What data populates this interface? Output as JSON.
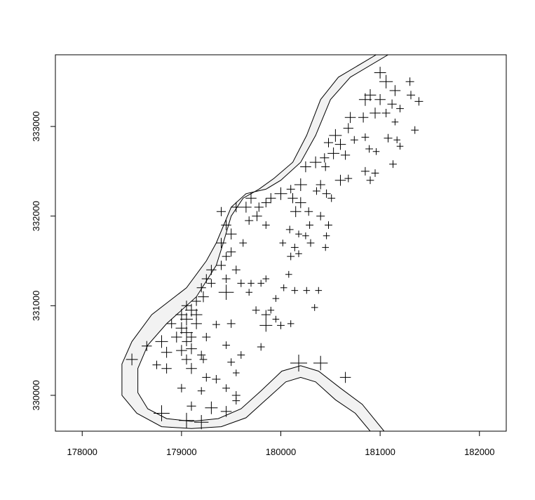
{
  "chart_data": {
    "type": "scatter",
    "title": "",
    "xlabel": "",
    "ylabel": "",
    "xlim": [
      177730,
      182270
    ],
    "ylim": [
      329600,
      333800
    ],
    "x_ticks": [
      178000,
      179000,
      180000,
      181000,
      182000
    ],
    "y_ticks": [
      330000,
      331000,
      332000,
      333000
    ],
    "x_tick_labels": [
      "178000",
      "179000",
      "180000",
      "181000",
      "182000"
    ],
    "y_tick_labels": [
      "330000",
      "331000",
      "332000",
      "333000"
    ],
    "marker": "plus",
    "marker_color": "#000000",
    "river_fill": "#f2f2f2",
    "river_stroke": "#000000",
    "legend": "none",
    "grid": false,
    "river_left_outer": [
      [
        181080,
        333800
      ],
      [
        180700,
        333550
      ],
      [
        180500,
        333300
      ],
      [
        180350,
        332900
      ],
      [
        180200,
        332600
      ],
      [
        180000,
        332400
      ],
      [
        179850,
        332300
      ],
      [
        179650,
        332250
      ],
      [
        179500,
        332100
      ],
      [
        179350,
        331700
      ],
      [
        179250,
        331500
      ],
      [
        179050,
        331200
      ],
      [
        178700,
        330900
      ],
      [
        178500,
        330600
      ],
      [
        178400,
        330350
      ],
      [
        178400,
        330000
      ],
      [
        178550,
        329800
      ],
      [
        178800,
        329650
      ],
      [
        179100,
        329630
      ],
      [
        179400,
        329650
      ],
      [
        179650,
        329750
      ],
      [
        179850,
        329950
      ],
      [
        180050,
        330150
      ],
      [
        180200,
        330200
      ],
      [
        180350,
        330150
      ],
      [
        180550,
        329950
      ],
      [
        180750,
        329800
      ],
      [
        180900,
        329600
      ]
    ],
    "river_left_inner": [
      [
        180960,
        333800
      ],
      [
        180580,
        333550
      ],
      [
        180400,
        333300
      ],
      [
        180260,
        332900
      ],
      [
        180120,
        332600
      ],
      [
        179930,
        332420
      ],
      [
        179780,
        332300
      ],
      [
        179620,
        332200
      ],
      [
        179500,
        332000
      ],
      [
        179420,
        331700
      ],
      [
        179350,
        331450
      ],
      [
        179150,
        331100
      ],
      [
        178850,
        330800
      ],
      [
        178660,
        330560
      ],
      [
        178560,
        330300
      ],
      [
        178560,
        330030
      ],
      [
        178660,
        329850
      ],
      [
        178850,
        329740
      ],
      [
        179100,
        329710
      ],
      [
        179370,
        329740
      ],
      [
        179600,
        329850
      ],
      [
        179800,
        330050
      ],
      [
        180010,
        330270
      ],
      [
        180200,
        330330
      ],
      [
        180380,
        330270
      ],
      [
        180600,
        330080
      ],
      [
        180820,
        329900
      ],
      [
        181040,
        329600
      ]
    ],
    "points": [
      {
        "x": 181000,
        "y": 333600,
        "s": 1.4
      },
      {
        "x": 181060,
        "y": 333500,
        "s": 1.6
      },
      {
        "x": 181150,
        "y": 333400,
        "s": 1.3
      },
      {
        "x": 181300,
        "y": 333500,
        "s": 1.0
      },
      {
        "x": 181310,
        "y": 333350,
        "s": 1.0
      },
      {
        "x": 181390,
        "y": 333280,
        "s": 1.0
      },
      {
        "x": 181000,
        "y": 333300,
        "s": 1.3
      },
      {
        "x": 180900,
        "y": 333350,
        "s": 1.4
      },
      {
        "x": 180850,
        "y": 333300,
        "s": 1.5
      },
      {
        "x": 181120,
        "y": 333250,
        "s": 1.1
      },
      {
        "x": 181200,
        "y": 333200,
        "s": 0.9
      },
      {
        "x": 180950,
        "y": 333150,
        "s": 1.3
      },
      {
        "x": 180830,
        "y": 333100,
        "s": 1.2
      },
      {
        "x": 180700,
        "y": 333100,
        "s": 1.3
      },
      {
        "x": 181060,
        "y": 333150,
        "s": 1.0
      },
      {
        "x": 181150,
        "y": 333050,
        "s": 0.8
      },
      {
        "x": 181350,
        "y": 332960,
        "s": 0.9
      },
      {
        "x": 180680,
        "y": 332980,
        "s": 1.2
      },
      {
        "x": 180550,
        "y": 332900,
        "s": 1.5
      },
      {
        "x": 180600,
        "y": 332800,
        "s": 1.3
      },
      {
        "x": 180480,
        "y": 332820,
        "s": 1.1
      },
      {
        "x": 180740,
        "y": 332850,
        "s": 0.9
      },
      {
        "x": 180850,
        "y": 332880,
        "s": 0.9
      },
      {
        "x": 181080,
        "y": 332870,
        "s": 1.0
      },
      {
        "x": 181170,
        "y": 332850,
        "s": 0.8
      },
      {
        "x": 181200,
        "y": 332780,
        "s": 0.8
      },
      {
        "x": 180890,
        "y": 332750,
        "s": 0.9
      },
      {
        "x": 180960,
        "y": 332720,
        "s": 0.8
      },
      {
        "x": 180530,
        "y": 332700,
        "s": 1.4
      },
      {
        "x": 180650,
        "y": 332680,
        "s": 1.1
      },
      {
        "x": 180440,
        "y": 332650,
        "s": 1.1
      },
      {
        "x": 180350,
        "y": 332600,
        "s": 1.4
      },
      {
        "x": 180250,
        "y": 332550,
        "s": 1.3
      },
      {
        "x": 180450,
        "y": 332550,
        "s": 1.0
      },
      {
        "x": 181130,
        "y": 332580,
        "s": 0.9
      },
      {
        "x": 180850,
        "y": 332500,
        "s": 1.0
      },
      {
        "x": 180950,
        "y": 332480,
        "s": 0.9
      },
      {
        "x": 180900,
        "y": 332400,
        "s": 0.9
      },
      {
        "x": 180600,
        "y": 332400,
        "s": 1.3
      },
      {
        "x": 180680,
        "y": 332420,
        "s": 0.9
      },
      {
        "x": 180400,
        "y": 332350,
        "s": 1.1
      },
      {
        "x": 180200,
        "y": 332350,
        "s": 1.5
      },
      {
        "x": 180360,
        "y": 332280,
        "s": 0.9
      },
      {
        "x": 180100,
        "y": 332300,
        "s": 1.0
      },
      {
        "x": 180000,
        "y": 332250,
        "s": 1.5
      },
      {
        "x": 179900,
        "y": 332200,
        "s": 1.2
      },
      {
        "x": 179700,
        "y": 332200,
        "s": 1.3
      },
      {
        "x": 180460,
        "y": 332250,
        "s": 1.0
      },
      {
        "x": 180510,
        "y": 332200,
        "s": 0.9
      },
      {
        "x": 180120,
        "y": 332200,
        "s": 1.2
      },
      {
        "x": 180200,
        "y": 332150,
        "s": 1.3
      },
      {
        "x": 179850,
        "y": 332150,
        "s": 1.1
      },
      {
        "x": 179780,
        "y": 332100,
        "s": 1.1
      },
      {
        "x": 179650,
        "y": 332100,
        "s": 1.3
      },
      {
        "x": 179550,
        "y": 332100,
        "s": 1.2
      },
      {
        "x": 179400,
        "y": 332050,
        "s": 1.1
      },
      {
        "x": 180150,
        "y": 332050,
        "s": 1.3
      },
      {
        "x": 180280,
        "y": 332050,
        "s": 1.0
      },
      {
        "x": 179760,
        "y": 332000,
        "s": 1.2
      },
      {
        "x": 179680,
        "y": 331950,
        "s": 1.0
      },
      {
        "x": 180400,
        "y": 332000,
        "s": 1.0
      },
      {
        "x": 180290,
        "y": 331900,
        "s": 0.9
      },
      {
        "x": 179850,
        "y": 331900,
        "s": 0.9
      },
      {
        "x": 179450,
        "y": 331900,
        "s": 1.2
      },
      {
        "x": 180480,
        "y": 331900,
        "s": 0.9
      },
      {
        "x": 180090,
        "y": 331850,
        "s": 0.9
      },
      {
        "x": 180180,
        "y": 331800,
        "s": 0.8
      },
      {
        "x": 180250,
        "y": 331780,
        "s": 0.8
      },
      {
        "x": 180460,
        "y": 331780,
        "s": 0.8
      },
      {
        "x": 179500,
        "y": 331800,
        "s": 1.3
      },
      {
        "x": 179400,
        "y": 331700,
        "s": 1.2
      },
      {
        "x": 179620,
        "y": 331700,
        "s": 0.9
      },
      {
        "x": 180020,
        "y": 331700,
        "s": 0.8
      },
      {
        "x": 180140,
        "y": 331650,
        "s": 0.9
      },
      {
        "x": 180300,
        "y": 331700,
        "s": 0.9
      },
      {
        "x": 180450,
        "y": 331650,
        "s": 0.8
      },
      {
        "x": 179500,
        "y": 331600,
        "s": 1.1
      },
      {
        "x": 179450,
        "y": 331550,
        "s": 1.0
      },
      {
        "x": 180100,
        "y": 331550,
        "s": 0.9
      },
      {
        "x": 180180,
        "y": 331580,
        "s": 0.8
      },
      {
        "x": 179400,
        "y": 331450,
        "s": 1.1
      },
      {
        "x": 179300,
        "y": 331400,
        "s": 1.2
      },
      {
        "x": 179550,
        "y": 331400,
        "s": 1.0
      },
      {
        "x": 179250,
        "y": 331300,
        "s": 1.1
      },
      {
        "x": 179450,
        "y": 331300,
        "s": 1.0
      },
      {
        "x": 179850,
        "y": 331300,
        "s": 0.8
      },
      {
        "x": 180080,
        "y": 331350,
        "s": 0.8
      },
      {
        "x": 179200,
        "y": 331200,
        "s": 1.1
      },
      {
        "x": 179300,
        "y": 331250,
        "s": 1.0
      },
      {
        "x": 179600,
        "y": 331250,
        "s": 0.9
      },
      {
        "x": 179700,
        "y": 331250,
        "s": 0.8
      },
      {
        "x": 179800,
        "y": 331250,
        "s": 0.8
      },
      {
        "x": 179220,
        "y": 331100,
        "s": 1.3
      },
      {
        "x": 179450,
        "y": 331150,
        "s": 1.8
      },
      {
        "x": 179680,
        "y": 331150,
        "s": 0.8
      },
      {
        "x": 180030,
        "y": 331200,
        "s": 0.8
      },
      {
        "x": 180140,
        "y": 331170,
        "s": 0.8
      },
      {
        "x": 180260,
        "y": 331170,
        "s": 0.8
      },
      {
        "x": 180380,
        "y": 331170,
        "s": 0.8
      },
      {
        "x": 179950,
        "y": 331080,
        "s": 0.8
      },
      {
        "x": 179050,
        "y": 331000,
        "s": 1.2
      },
      {
        "x": 179150,
        "y": 331050,
        "s": 1.1
      },
      {
        "x": 179000,
        "y": 330900,
        "s": 1.4
      },
      {
        "x": 179100,
        "y": 330950,
        "s": 1.5
      },
      {
        "x": 180340,
        "y": 330980,
        "s": 0.8
      },
      {
        "x": 179050,
        "y": 330850,
        "s": 1.5
      },
      {
        "x": 179150,
        "y": 330900,
        "s": 1.4
      },
      {
        "x": 179750,
        "y": 330950,
        "s": 0.9
      },
      {
        "x": 179850,
        "y": 330900,
        "s": 1.1
      },
      {
        "x": 179900,
        "y": 330950,
        "s": 0.8
      },
      {
        "x": 178900,
        "y": 330800,
        "s": 1.1
      },
      {
        "x": 179000,
        "y": 330750,
        "s": 1.4
      },
      {
        "x": 179150,
        "y": 330800,
        "s": 1.3
      },
      {
        "x": 179050,
        "y": 330700,
        "s": 1.5
      },
      {
        "x": 179500,
        "y": 330800,
        "s": 1.0
      },
      {
        "x": 179850,
        "y": 330780,
        "s": 1.5
      },
      {
        "x": 180000,
        "y": 330780,
        "s": 0.9
      },
      {
        "x": 179950,
        "y": 330850,
        "s": 0.8
      },
      {
        "x": 180100,
        "y": 330800,
        "s": 0.8
      },
      {
        "x": 179050,
        "y": 330600,
        "s": 1.1
      },
      {
        "x": 178800,
        "y": 330600,
        "s": 1.5
      },
      {
        "x": 178950,
        "y": 330650,
        "s": 1.3
      },
      {
        "x": 179100,
        "y": 330650,
        "s": 1.2
      },
      {
        "x": 179250,
        "y": 330650,
        "s": 1.0
      },
      {
        "x": 179350,
        "y": 330790,
        "s": 0.9
      },
      {
        "x": 179100,
        "y": 330520,
        "s": 1.3
      },
      {
        "x": 179000,
        "y": 330500,
        "s": 1.3
      },
      {
        "x": 178650,
        "y": 330550,
        "s": 1.2
      },
      {
        "x": 178850,
        "y": 330480,
        "s": 1.3
      },
      {
        "x": 179450,
        "y": 330560,
        "s": 0.9
      },
      {
        "x": 179800,
        "y": 330540,
        "s": 0.9
      },
      {
        "x": 179200,
        "y": 330450,
        "s": 1.0
      },
      {
        "x": 179600,
        "y": 330450,
        "s": 0.9
      },
      {
        "x": 178500,
        "y": 330400,
        "s": 1.4
      },
      {
        "x": 179050,
        "y": 330400,
        "s": 1.2
      },
      {
        "x": 179220,
        "y": 330400,
        "s": 0.9
      },
      {
        "x": 180180,
        "y": 330360,
        "s": 2.0
      },
      {
        "x": 180400,
        "y": 330360,
        "s": 1.7
      },
      {
        "x": 178850,
        "y": 330300,
        "s": 1.2
      },
      {
        "x": 178750,
        "y": 330340,
        "s": 1.0
      },
      {
        "x": 179100,
        "y": 330300,
        "s": 1.3
      },
      {
        "x": 179500,
        "y": 330370,
        "s": 0.9
      },
      {
        "x": 179550,
        "y": 330250,
        "s": 0.8
      },
      {
        "x": 179250,
        "y": 330200,
        "s": 1.0
      },
      {
        "x": 179350,
        "y": 330180,
        "s": 1.0
      },
      {
        "x": 180650,
        "y": 330200,
        "s": 1.3
      },
      {
        "x": 179000,
        "y": 330080,
        "s": 1.0
      },
      {
        "x": 179200,
        "y": 330050,
        "s": 0.9
      },
      {
        "x": 179450,
        "y": 330080,
        "s": 0.9
      },
      {
        "x": 179550,
        "y": 330000,
        "s": 1.0
      },
      {
        "x": 179550,
        "y": 329940,
        "s": 0.9
      },
      {
        "x": 179100,
        "y": 329880,
        "s": 1.1
      },
      {
        "x": 179300,
        "y": 329860,
        "s": 1.5
      },
      {
        "x": 179450,
        "y": 329820,
        "s": 1.3
      },
      {
        "x": 178800,
        "y": 329800,
        "s": 1.9
      },
      {
        "x": 179050,
        "y": 329720,
        "s": 1.8
      },
      {
        "x": 179200,
        "y": 329700,
        "s": 1.7
      }
    ]
  }
}
